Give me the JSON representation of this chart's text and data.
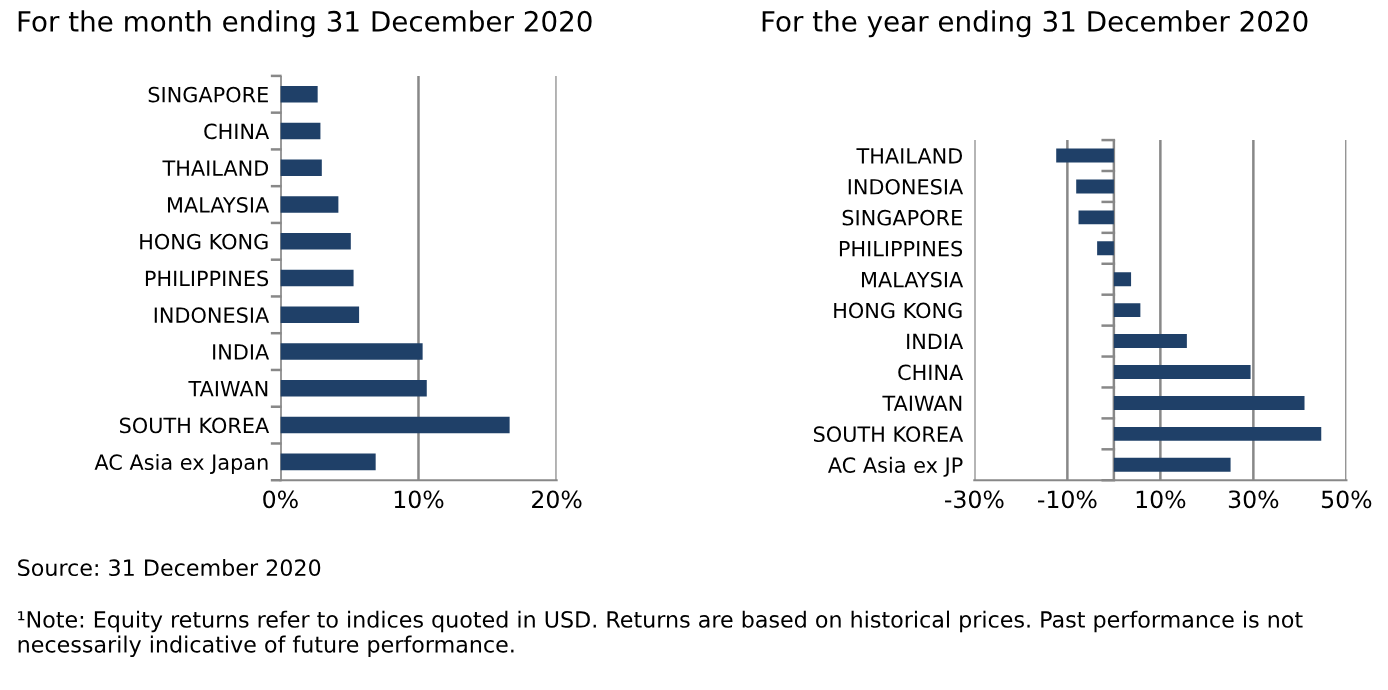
{
  "chart_data": [
    {
      "type": "bar",
      "orientation": "horizontal",
      "title": "For the month ending 31 December 2020",
      "categories": [
        "SINGAPORE",
        "CHINA",
        "THAILAND",
        "MALAYSIA",
        "HONG KONG",
        "PHILIPPINES",
        "INDONESIA",
        "INDIA",
        "TAIWAN",
        "SOUTH KOREA",
        "AC Asia ex Japan"
      ],
      "values": [
        2.7,
        2.9,
        3.0,
        4.2,
        5.1,
        5.3,
        5.7,
        10.3,
        10.6,
        16.6,
        6.9
      ],
      "color": "#1f4068",
      "xlim": [
        0,
        20
      ],
      "xticks": [
        {
          "value": 0,
          "label": "0%"
        },
        {
          "value": 10,
          "label": "10%"
        },
        {
          "value": 20,
          "label": "20%"
        }
      ],
      "grid": "x",
      "annotations": [
        "Source: 31 December 2020",
        "¹Note: Equity returns refer to indices quoted in USD. Returns are based on historical prices. Past performance is not necessarily indicative of future performance."
      ]
    },
    {
      "type": "bar",
      "orientation": "horizontal",
      "title": "For the year ending 31 December 2020",
      "categories": [
        "THAILAND",
        "INDONESIA",
        "SINGAPORE",
        "PHILIPPINES",
        "MALAYSIA",
        "HONG KONG",
        "INDIA",
        "CHINA",
        "TAIWAN",
        "SOUTH KOREA",
        "AC Asia ex JP"
      ],
      "values": [
        -12.4,
        -8.1,
        -7.6,
        -3.6,
        3.7,
        5.7,
        15.7,
        29.4,
        41.0,
        44.6,
        25.1
      ],
      "color": "#1f4068",
      "xlim": [
        -30,
        50
      ],
      "xticks": [
        {
          "value": -30,
          "label": "-30%"
        },
        {
          "value": -10,
          "label": "-10%"
        },
        {
          "value": 10,
          "label": "10%"
        },
        {
          "value": 30,
          "label": "30%"
        },
        {
          "value": 50,
          "label": "50%"
        }
      ],
      "grid": "x"
    }
  ]
}
